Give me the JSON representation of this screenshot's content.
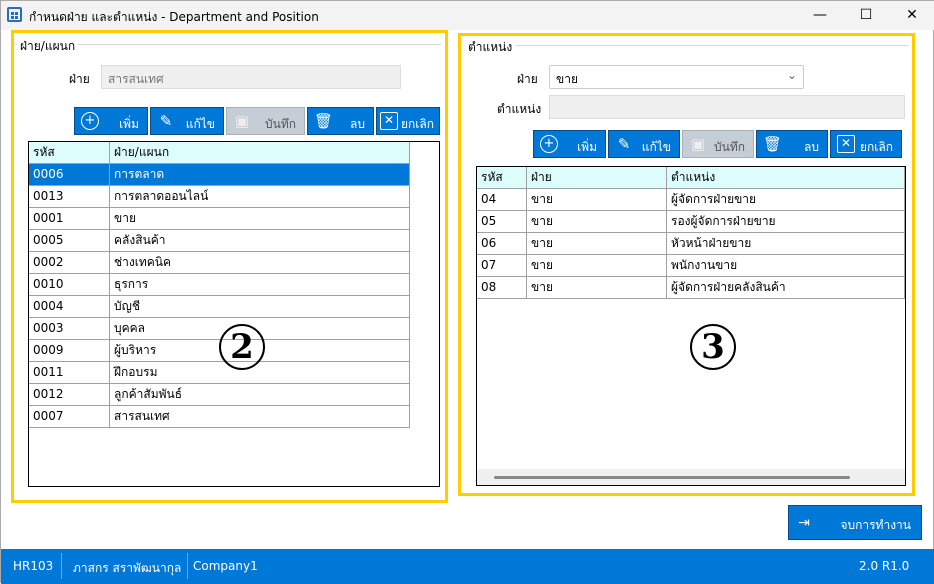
{
  "window": {
    "title": "กำหนดฝ่าย และตำแหน่ง - Department and Position",
    "minimize": "—",
    "maximize": "☐",
    "close": "✕"
  },
  "annotations": {
    "left": "2",
    "right": "3"
  },
  "department": {
    "group_label": "ฝ่าย/แผนก",
    "field_label": "ฝ่าย",
    "field_value": "สารสนเทศ",
    "buttons": {
      "add": "เพิ่ม",
      "edit": "แก้ไข",
      "save": "บันทึก",
      "delete": "ลบ",
      "cancel": "ยกเลิก"
    },
    "columns": [
      "รหัส",
      "ฝ่าย/แผนก"
    ],
    "rows": [
      [
        "0006",
        "การตลาด"
      ],
      [
        "0013",
        "การตลาดออนไลน์"
      ],
      [
        "0001",
        "ขาย"
      ],
      [
        "0005",
        "คลังสินค้า"
      ],
      [
        "0002",
        "ช่างเทคนิค"
      ],
      [
        "0010",
        "ธุรการ"
      ],
      [
        "0004",
        "บัญชี"
      ],
      [
        "0003",
        "บุคคล"
      ],
      [
        "0009",
        "ผู้บริหาร"
      ],
      [
        "0011",
        "ฝึกอบรม"
      ],
      [
        "0012",
        "ลูกค้าสัมพันธ์"
      ],
      [
        "0007",
        "สารสนเทศ"
      ]
    ],
    "selected_index": 0
  },
  "position": {
    "group_label": "ตำแหน่ง",
    "dept_label": "ฝ่าย",
    "dept_value": "ขาย",
    "pos_label": "ตำแหน่ง",
    "pos_value": "",
    "buttons": {
      "add": "เพิ่ม",
      "edit": "แก้ไข",
      "save": "บันทึก",
      "delete": "ลบ",
      "cancel": "ยกเลิก"
    },
    "columns": [
      "รหัส",
      "ฝ่าย",
      "ตำแหน่ง"
    ],
    "rows": [
      [
        "04",
        "ขาย",
        "ผู้จัดการฝ่ายขาย"
      ],
      [
        "05",
        "ขาย",
        "รองผู้จัดการฝ่ายขาย"
      ],
      [
        "06",
        "ขาย",
        "หัวหน้าฝ่ายขาย"
      ],
      [
        "07",
        "ขาย",
        "พนักงานขาย"
      ],
      [
        "08",
        "ขาย",
        "ผู้จัดการฝ่ายคลังสินค้า"
      ]
    ]
  },
  "exit_button": "จบการทำงาน",
  "statusbar": {
    "code": "HR103",
    "user": "ภาสกร สราพัฒนากุล",
    "company": "Company1",
    "version": "2.0 R1.0"
  },
  "colors": {
    "accent": "#0078d7",
    "highlight": "#ffcc00",
    "header_bg": "#ddfcfc"
  }
}
